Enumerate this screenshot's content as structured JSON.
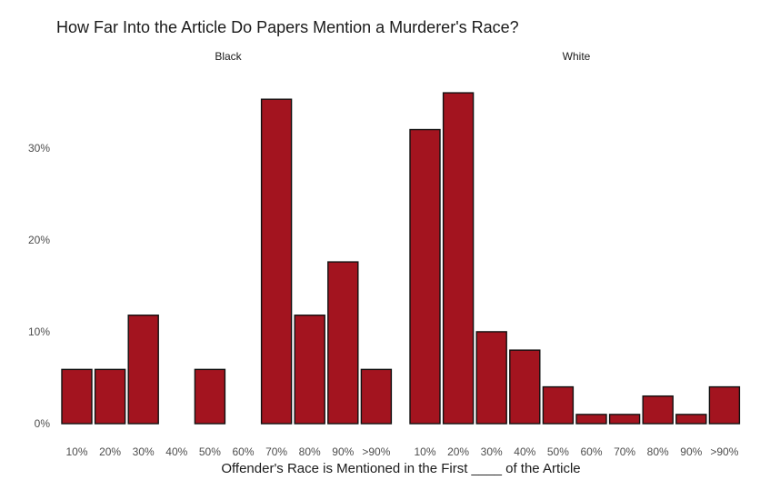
{
  "chart_data": {
    "type": "bar",
    "title": "How Far Into the Article Do Papers Mention a Murderer's Race?",
    "xlabel": "Offender's Race is Mentioned in the First ____ of the Article",
    "ylabel": "",
    "categories": [
      "10%",
      "20%",
      "30%",
      "40%",
      "50%",
      "60%",
      "70%",
      "80%",
      "90%",
      ">90%"
    ],
    "y_ticks": [
      "0%",
      "10%",
      "20%",
      "30%"
    ],
    "ylim": [
      0,
      37
    ],
    "grid": false,
    "bar_color": "#a3141f",
    "bar_edge_color": "#111111",
    "facets": [
      {
        "name": "Black",
        "values": [
          5.9,
          5.9,
          11.8,
          0,
          5.9,
          0,
          35.3,
          11.8,
          17.6,
          5.9
        ]
      },
      {
        "name": "White",
        "values": [
          32.0,
          36.0,
          10.0,
          8.0,
          4.0,
          1.0,
          1.0,
          3.0,
          1.0,
          4.0
        ]
      }
    ]
  }
}
